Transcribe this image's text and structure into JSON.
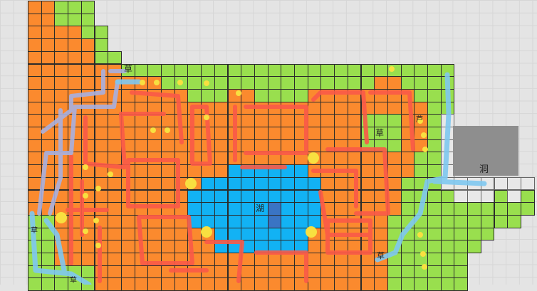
{
  "map": {
    "labels": {
      "grass_top": "草",
      "grass_mid": "草",
      "grass_small_right": "芦",
      "grass_left": "草",
      "grass_bottom_left": "草",
      "grass_bottom": "草",
      "lake": "湖",
      "cave": "洞"
    },
    "colors": {
      "ground": "#fb8a2e",
      "grass": "#99df4e",
      "water": "#12b2f4",
      "deep_water": "#3a74c4",
      "empty": "#e8e8e8",
      "cave": "#8e8e8e",
      "path_red": "#fa5a48",
      "path_blue": "#7fc8f0",
      "path_lavender": "#a8b0e0",
      "marker_yellow": "#f8e040"
    }
  }
}
